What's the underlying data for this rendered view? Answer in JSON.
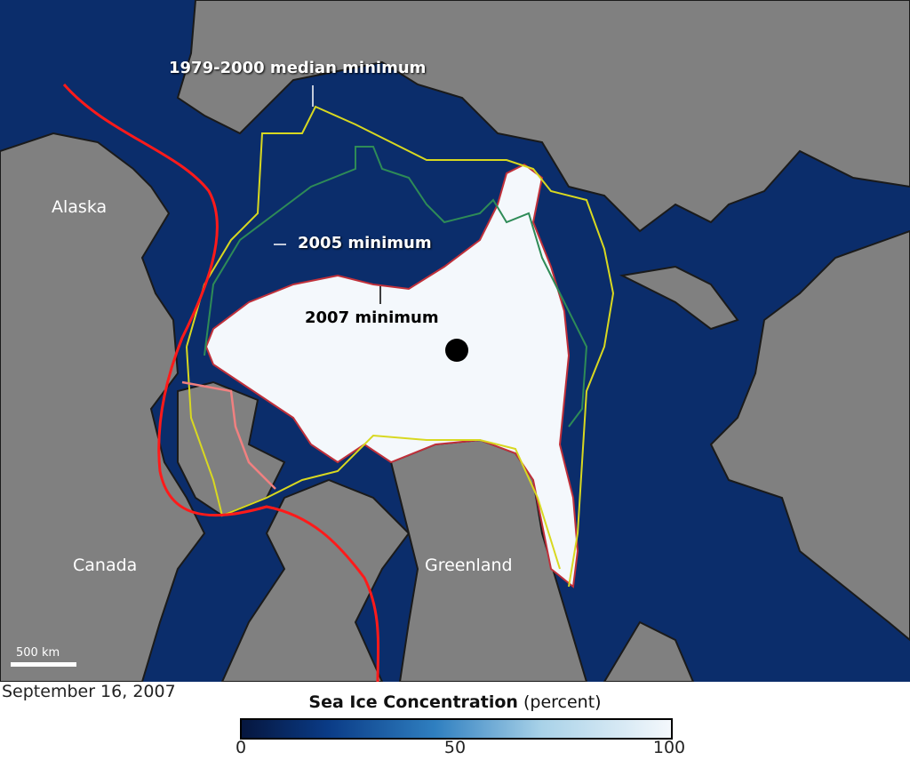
{
  "map": {
    "region_labels": {
      "alaska": "Alaska",
      "canada": "Canada",
      "greenland": "Greenland"
    },
    "annotations": {
      "median": "1979-2000 median minimum",
      "min2005": "2005 minimum",
      "min2007": "2007 minimum"
    },
    "scale_bar": "500 km",
    "colors": {
      "ocean": "#0b2d6b",
      "land": "#808080",
      "ice": "#f4f8fc",
      "median_line": "#d8d820",
      "line_2005": "#2e8b57",
      "line_2007": "#c0303a",
      "route": "#ff1a1a"
    }
  },
  "date": "September 16, 2007",
  "legend": {
    "title": "Sea Ice Concentration",
    "unit": "(percent)",
    "ticks": [
      "0",
      "50",
      "100"
    ],
    "range": [
      0,
      100
    ]
  }
}
